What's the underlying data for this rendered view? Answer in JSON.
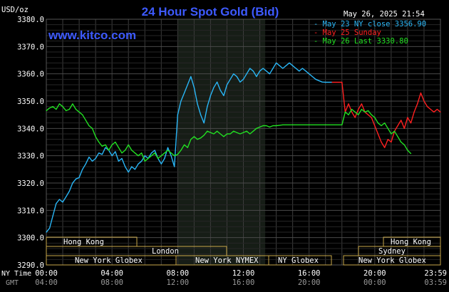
{
  "header": {
    "title": "24 Hour Spot Gold (Bid)",
    "units": "USD/oz",
    "timestamp": "May 26, 2025 21:54",
    "brand": "www.kitco.com"
  },
  "legend": [
    {
      "label": "May 23 NY close 3356.90",
      "color": "#29b6f6"
    },
    {
      "label": "May 25 Sunday",
      "color": "#ff2020"
    },
    {
      "label": "May 26 Last 3330.80",
      "color": "#22e022"
    }
  ],
  "markets": {
    "hong_kong_left": "Hong Kong",
    "london": "London",
    "new_york_globex_left": "New York Globex",
    "new_york_nymex": "New York NYMEX",
    "ny_globex": "NY Globex",
    "hong_kong_right": "Hong Kong",
    "sydney": "Sydney",
    "new_york_globex_right": "New York Globex"
  },
  "axis_labels": {
    "ny_time": "NY Time",
    "gmt": "GMT"
  },
  "chart_data": {
    "type": "line",
    "title": "24 Hour Spot Gold (Bid)",
    "ylabel": "USD/oz",
    "ylim": [
      3290,
      3380
    ],
    "yticks": [
      "3290.0",
      "3300.0",
      "3310.0",
      "3320.0",
      "3330.0",
      "3340.0",
      "3350.0",
      "3360.0",
      "3370.0",
      "3380.0"
    ],
    "xlim": [
      0,
      24
    ],
    "xticks_ny": [
      "00:00",
      "04:00",
      "08:00",
      "12:00",
      "16:00",
      "20:00",
      "23:59"
    ],
    "xticks_gmt": [
      "04:00",
      "08:00",
      "12:00",
      "16:00",
      "20:00",
      "00:00",
      "03:59"
    ],
    "grid": true,
    "legend_position": "top-right",
    "series": [
      {
        "name": "May 23 NY close 3356.90",
        "color": "#29b6f6",
        "x": [
          0,
          0.2,
          0.4,
          0.6,
          0.8,
          1.0,
          1.2,
          1.4,
          1.6,
          1.8,
          2.0,
          2.2,
          2.4,
          2.6,
          2.8,
          3.0,
          3.2,
          3.4,
          3.6,
          3.8,
          4.0,
          4.2,
          4.4,
          4.6,
          4.8,
          5.0,
          5.2,
          5.4,
          5.6,
          5.8,
          6.0,
          6.2,
          6.4,
          6.6,
          6.8,
          7.0,
          7.2,
          7.4,
          7.6,
          7.8,
          8.0,
          8.2,
          8.4,
          8.6,
          8.8,
          9.0,
          9.2,
          9.4,
          9.6,
          9.8,
          10.0,
          10.2,
          10.4,
          10.6,
          10.8,
          11.0,
          11.2,
          11.4,
          11.6,
          11.8,
          12.0,
          12.2,
          12.4,
          12.6,
          12.8,
          13.0,
          13.2,
          13.4,
          13.6,
          13.8,
          14.0,
          14.2,
          14.4,
          14.6,
          14.8,
          15.0,
          15.2,
          15.4,
          15.6,
          15.8,
          16.0,
          16.2,
          16.4,
          16.6,
          16.8,
          17.0,
          17.2,
          17.4
        ],
        "y": [
          3302.0,
          3303.5,
          3308.0,
          3312.5,
          3314.0,
          3313.0,
          3315.0,
          3317.0,
          3320.0,
          3321.5,
          3322.0,
          3325.0,
          3327.0,
          3329.5,
          3328.0,
          3329.0,
          3331.0,
          3330.5,
          3333.0,
          3332.0,
          3330.0,
          3331.5,
          3328.0,
          3329.0,
          3326.0,
          3324.0,
          3326.0,
          3325.0,
          3327.0,
          3328.0,
          3330.0,
          3329.0,
          3331.0,
          3332.0,
          3329.0,
          3327.0,
          3329.0,
          3333.0,
          3330.0,
          3326.0,
          3345.0,
          3350.0,
          3353.0,
          3356.0,
          3359.0,
          3355.0,
          3349.0,
          3345.0,
          3342.0,
          3348.0,
          3352.0,
          3355.0,
          3357.0,
          3354.0,
          3352.0,
          3356.0,
          3358.0,
          3360.0,
          3359.0,
          3357.0,
          3358.0,
          3360.0,
          3362.0,
          3361.0,
          3359.0,
          3361.0,
          3362.0,
          3361.0,
          3360.0,
          3362.0,
          3364.0,
          3363.0,
          3362.0,
          3363.0,
          3364.0,
          3363.0,
          3362.0,
          3361.0,
          3362.0,
          3361.0,
          3360.0,
          3359.0,
          3358.0,
          3357.5,
          3357.0,
          3356.9,
          3356.9,
          3356.9
        ]
      },
      {
        "name": "May 25 Sunday",
        "color": "#ff2020",
        "x": [
          17.4,
          17.8,
          18.0,
          18.2,
          18.4,
          18.6,
          18.8,
          19.0,
          19.2,
          19.4,
          19.6,
          19.8,
          20.0,
          20.2,
          20.4,
          20.6,
          20.8,
          21.0,
          21.2,
          21.4,
          21.6,
          21.8,
          22.0,
          22.2,
          22.4,
          22.6,
          22.8,
          23.0,
          23.2,
          23.4,
          23.6,
          23.8,
          24.0
        ],
        "y": [
          3356.9,
          3356.9,
          3356.9,
          3346.0,
          3349.0,
          3346.0,
          3344.0,
          3347.0,
          3349.0,
          3346.0,
          3345.0,
          3344.0,
          3341.0,
          3338.0,
          3335.0,
          3333.0,
          3336.0,
          3335.0,
          3339.0,
          3341.0,
          3343.0,
          3340.0,
          3344.0,
          3342.0,
          3346.0,
          3349.0,
          3353.0,
          3350.0,
          3348.0,
          3347.0,
          3346.0,
          3347.0,
          3346.0
        ]
      },
      {
        "name": "May 26 Last 3330.80",
        "color": "#22e022",
        "x": [
          0,
          0.2,
          0.4,
          0.6,
          0.8,
          1.0,
          1.2,
          1.4,
          1.6,
          1.8,
          2.0,
          2.2,
          2.4,
          2.6,
          2.8,
          3.0,
          3.2,
          3.4,
          3.6,
          3.8,
          4.0,
          4.2,
          4.4,
          4.6,
          4.8,
          5.0,
          5.2,
          5.4,
          5.6,
          5.8,
          6.0,
          6.2,
          6.4,
          6.6,
          6.8,
          7.0,
          7.2,
          7.4,
          7.6,
          7.8,
          8.0,
          8.2,
          8.4,
          8.6,
          8.8,
          9.0,
          9.2,
          9.4,
          9.6,
          9.8,
          10.0,
          10.2,
          10.4,
          10.6,
          10.8,
          11.0,
          11.2,
          11.4,
          11.6,
          11.8,
          12.0,
          12.2,
          12.4,
          12.6,
          12.8,
          13.0,
          13.2,
          13.4,
          13.6,
          13.8,
          14.0,
          14.4,
          15.0,
          16.0,
          17.0,
          18.0,
          18.2,
          18.4,
          18.6,
          18.8,
          19.0,
          19.2,
          19.4,
          19.6,
          19.8,
          20.0,
          20.2,
          20.4,
          20.6,
          20.8,
          21.0,
          21.2,
          21.4,
          21.6,
          21.8,
          22.0,
          22.2
        ],
        "y": [
          3346.5,
          3347.5,
          3348.0,
          3347.0,
          3349.0,
          3348.0,
          3346.5,
          3347.0,
          3349.0,
          3347.0,
          3346.0,
          3345.0,
          3343.0,
          3341.0,
          3340.0,
          3337.0,
          3335.0,
          3333.5,
          3334.0,
          3332.0,
          3334.0,
          3335.0,
          3333.0,
          3331.0,
          3332.0,
          3334.0,
          3332.0,
          3331.0,
          3330.0,
          3331.0,
          3328.0,
          3329.0,
          3330.0,
          3331.0,
          3329.0,
          3330.0,
          3331.0,
          3332.0,
          3331.0,
          3330.0,
          3330.5,
          3332.0,
          3334.0,
          3333.0,
          3336.0,
          3337.0,
          3336.0,
          3336.5,
          3337.5,
          3339.0,
          3338.5,
          3338.0,
          3339.0,
          3338.0,
          3337.0,
          3338.0,
          3338.0,
          3339.0,
          3338.5,
          3338.0,
          3338.5,
          3339.0,
          3338.0,
          3339.0,
          3340.0,
          3340.5,
          3341.0,
          3341.0,
          3340.5,
          3341.0,
          3341.0,
          3341.3,
          3341.3,
          3341.3,
          3341.3,
          3341.3,
          3346.0,
          3345.0,
          3347.0,
          3346.0,
          3345.0,
          3347.0,
          3346.0,
          3346.5,
          3345.0,
          3344.0,
          3342.0,
          3341.0,
          3342.0,
          3340.0,
          3338.0,
          3339.0,
          3337.0,
          3335.0,
          3334.0,
          3332.0,
          3330.8
        ]
      }
    ]
  }
}
